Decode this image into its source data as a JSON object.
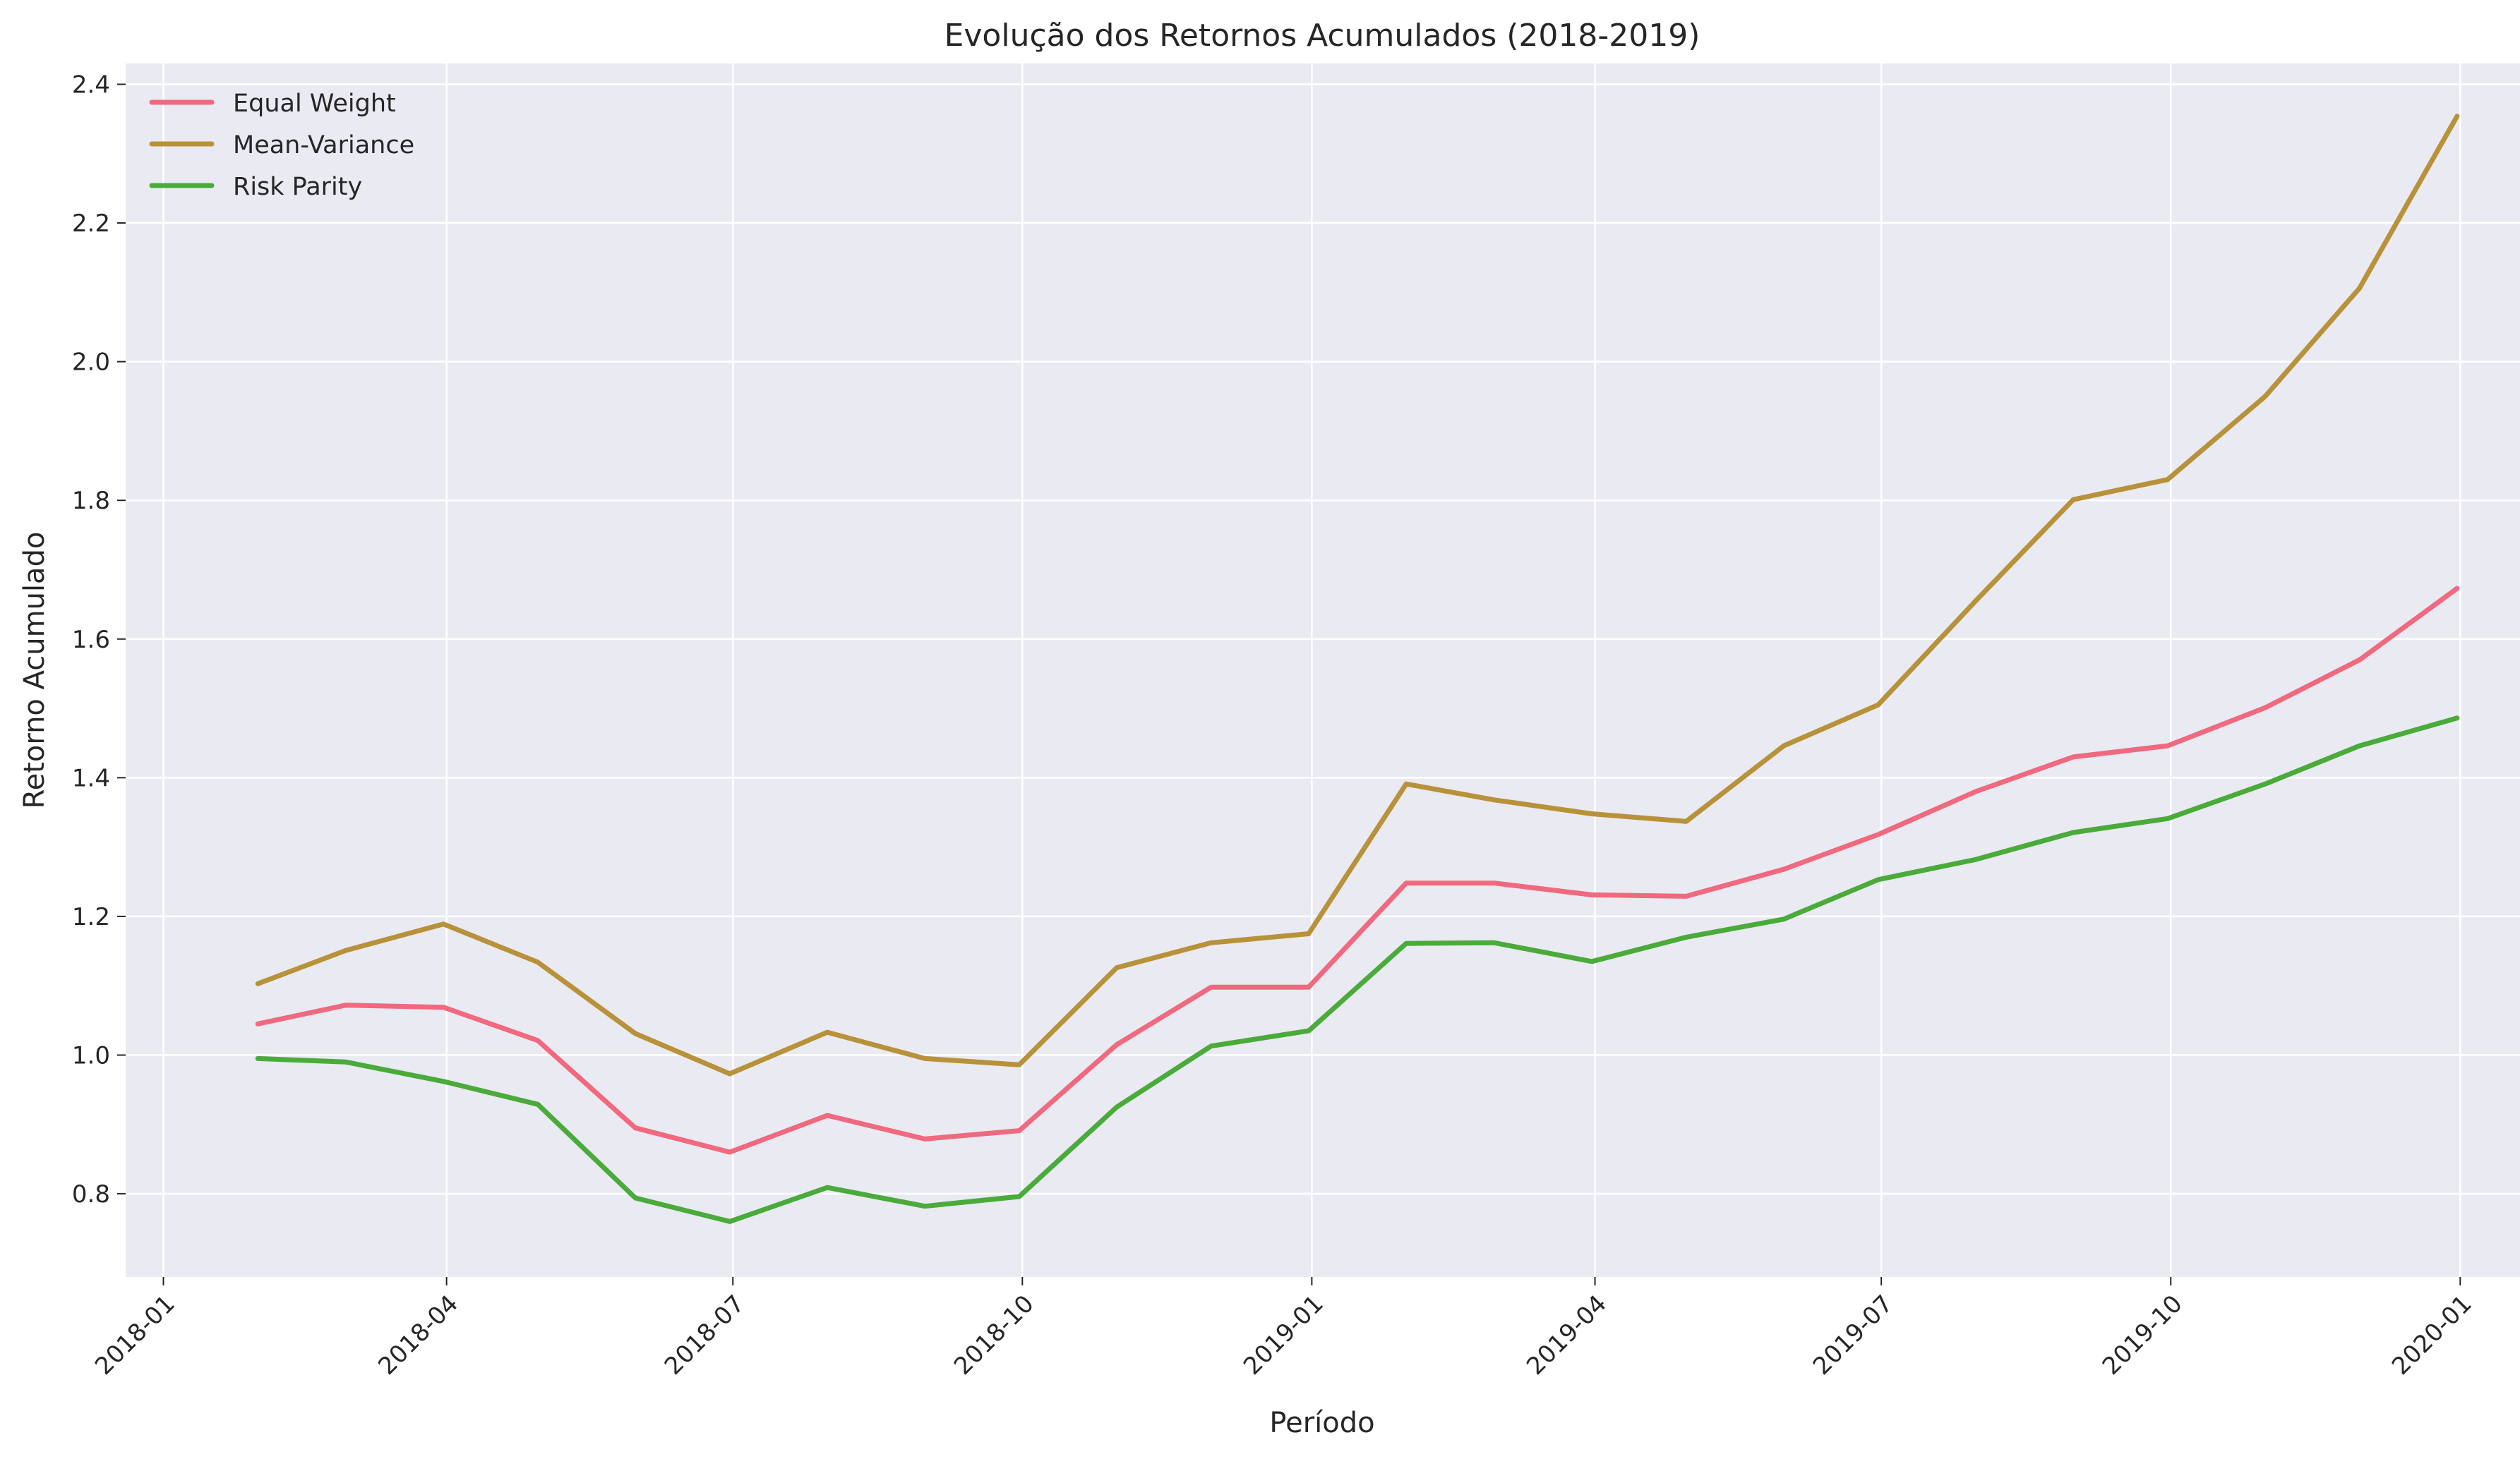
{
  "chart_data": {
    "type": "line",
    "title": "Evolução dos Retornos Acumulados (2018-2019)",
    "xlabel": "Período",
    "ylabel": "Retorno Acumulado",
    "x": [
      "2018-01-31",
      "2018-02-28",
      "2018-03-31",
      "2018-04-30",
      "2018-05-31",
      "2018-06-30",
      "2018-07-31",
      "2018-08-31",
      "2018-09-30",
      "2018-10-31",
      "2018-11-30",
      "2018-12-31",
      "2019-01-31",
      "2019-02-28",
      "2019-03-31",
      "2019-04-30",
      "2019-05-31",
      "2019-06-30",
      "2019-07-31",
      "2019-08-31",
      "2019-09-30",
      "2019-10-31",
      "2019-11-30",
      "2019-12-31"
    ],
    "x_ticks": [
      "2018-01",
      "2018-04",
      "2018-07",
      "2018-10",
      "2019-01",
      "2019-04",
      "2019-07",
      "2019-10",
      "2020-01"
    ],
    "y_ticks": [
      "0.8",
      "1.0",
      "1.2",
      "1.4",
      "1.6",
      "1.8",
      "2.0",
      "2.2",
      "2.4"
    ],
    "ylim": [
      0.68,
      2.43
    ],
    "xlim": [
      "2017-12-20",
      "2020-01-20"
    ],
    "grid": true,
    "legend_position": "top-left",
    "background": "#eaeaf2",
    "series": [
      {
        "name": "Equal Weight",
        "color": "#f0697f",
        "values": [
          1.045,
          1.072,
          1.069,
          1.021,
          0.895,
          0.86,
          0.913,
          0.879,
          0.891,
          1.015,
          1.098,
          1.098,
          1.248,
          1.248,
          1.231,
          1.229,
          1.268,
          1.318,
          1.38,
          1.43,
          1.446,
          1.501,
          1.57,
          1.673
        ]
      },
      {
        "name": "Mean-Variance",
        "color": "#b8923a",
        "values": [
          1.103,
          1.151,
          1.189,
          1.134,
          1.031,
          0.973,
          1.033,
          0.995,
          0.986,
          1.126,
          1.162,
          1.175,
          1.391,
          1.368,
          1.348,
          1.337,
          1.446,
          1.505,
          1.655,
          1.801,
          1.83,
          1.95,
          2.106,
          2.354
        ]
      },
      {
        "name": "Risk Parity",
        "color": "#4aab3a",
        "values": [
          0.995,
          0.99,
          0.962,
          0.929,
          0.794,
          0.76,
          0.809,
          0.782,
          0.796,
          0.925,
          1.013,
          1.035,
          1.161,
          1.162,
          1.135,
          1.17,
          1.196,
          1.253,
          1.282,
          1.321,
          1.341,
          1.391,
          1.446,
          1.486
        ]
      }
    ]
  }
}
